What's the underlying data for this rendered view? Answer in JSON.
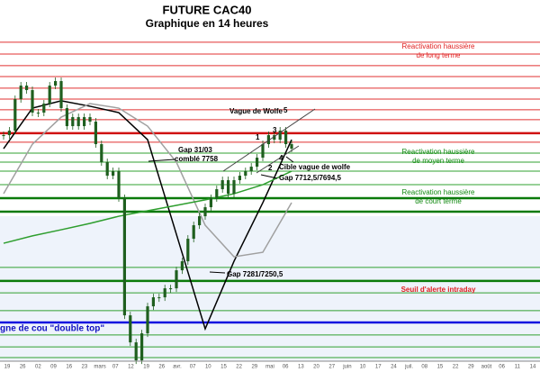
{
  "chart_data": {
    "type": "candlestick",
    "title": "FUTURE CAC40",
    "subtitle": "Graphique en 14 heures",
    "ylim": [
      6865,
      8434
    ],
    "categories": [
      "19",
      "26",
      "02",
      "09",
      "16",
      "23",
      "mars",
      "07",
      "12",
      "19",
      "26",
      "avr.",
      "07",
      "10",
      "15",
      "22",
      "29",
      "mai",
      "06",
      "13",
      "20",
      "27",
      "juin",
      "10",
      "17",
      "24",
      "juil.",
      "08",
      "15",
      "22",
      "29",
      "août",
      "06",
      "11",
      "14"
    ],
    "candle_color": "#1f5f1f",
    "closes": [
      7864,
      7883,
      8016,
      8073,
      8054,
      7959,
      7959,
      7997,
      8073,
      8092,
      7978,
      7902,
      7940,
      7902,
      7940,
      7921,
      7826,
      7750,
      7693,
      7712,
      7598,
      7104,
      6990,
      6914,
      7028,
      7142,
      7180,
      7180,
      7218,
      7218,
      7294,
      7332,
      7427,
      7484,
      7522,
      7560,
      7598,
      7636,
      7674,
      7617,
      7674,
      7693,
      7712,
      7731,
      7769,
      7826,
      7864,
      7845,
      7883,
      7826,
      7807
    ],
    "series": [
      {
        "color": "#000000",
        "x": [
          0,
          5,
          10,
          15,
          20,
          25,
          30,
          35,
          40,
          45,
          50
        ],
        "values": [
          7807,
          7978,
          8009,
          7986,
          7959,
          7845,
          7446,
          7047,
          7332,
          7579,
          7845
        ]
      },
      {
        "color": "#a0a0a0",
        "x": [
          0,
          5,
          10,
          15,
          20,
          25,
          30,
          35,
          40,
          45,
          50
        ],
        "values": [
          7617,
          7826,
          7940,
          7997,
          7978,
          7902,
          7750,
          7484,
          7351,
          7370,
          7579
        ]
      },
      {
        "color": "#2e9e2e",
        "x": [
          0,
          5,
          10,
          15,
          20,
          25,
          30,
          35,
          40,
          45,
          50
        ],
        "values": [
          7408,
          7439,
          7465,
          7492,
          7522,
          7545,
          7568,
          7591,
          7617,
          7655,
          7712
        ]
      }
    ],
    "levels": [
      {
        "value": 8256,
        "color": "#e03030"
      },
      {
        "value": 8206,
        "color": "#e03030"
      },
      {
        "value": 8157,
        "color": "#e03030"
      },
      {
        "value": 8111,
        "color": "#e03030"
      },
      {
        "value": 8062,
        "color": "#e03030"
      },
      {
        "value": 8016,
        "color": "#e03030"
      },
      {
        "value": 7971,
        "color": "#e03030"
      },
      {
        "value": 7929,
        "color": "#e03030"
      },
      {
        "value": 7872,
        "color": "#d01010",
        "bold": true
      },
      {
        "value": 7834,
        "color": "#e03030"
      },
      {
        "value": 7788,
        "color": "#30a030"
      },
      {
        "value": 7750,
        "color": "#30a030"
      },
      {
        "value": 7712,
        "color": "#30a030"
      },
      {
        "value": 7655,
        "color": "#30a030"
      },
      {
        "value": 7598,
        "color": "#0a7a0a",
        "bold": true
      },
      {
        "value": 7541,
        "color": "#0a7a0a",
        "bold": true
      },
      {
        "value": 7306,
        "color": "#30a030"
      },
      {
        "value": 7249,
        "color": "#0a7a0a",
        "bold": true
      },
      {
        "value": 7199,
        "color": "#30a030"
      },
      {
        "value": 7124,
        "color": "#30a030"
      },
      {
        "value": 7074,
        "color": "#1010e0",
        "bold": true
      },
      {
        "value": 7021,
        "color": "#30a030"
      },
      {
        "value": 6971,
        "color": "#30a030"
      },
      {
        "value": 6926,
        "color": "#30a030"
      }
    ],
    "zone_labels": [
      [
        "Reactivation haussière",
        "de long terme"
      ],
      [
        "Reactivation haussière",
        "de moyen terme"
      ],
      [
        "Reactivation haussière",
        "de court terme"
      ],
      [
        "Seuil d'alerte intraday"
      ]
    ],
    "neckline_label": "gne de cou \"double top\"",
    "annotations": [
      "Vague de Wolfe",
      "5",
      "3",
      "1",
      "2",
      "4",
      "Gap 31/03",
      "comblé 7758",
      "Cible vague de wolfe",
      "Gap 7712,5/7694,5",
      "Gap 7281/7250,5"
    ]
  }
}
